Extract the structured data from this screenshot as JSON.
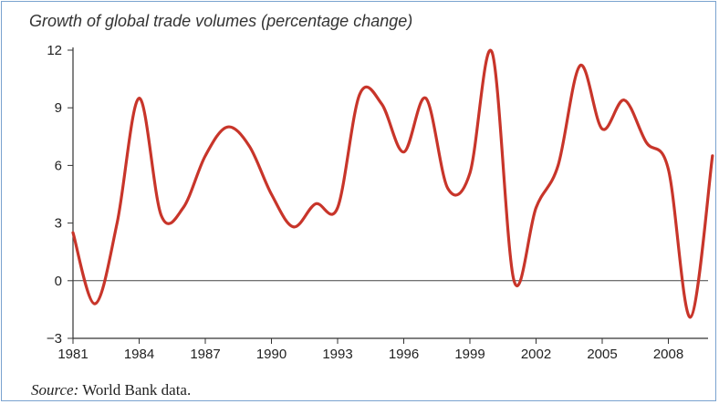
{
  "chart_data": {
    "type": "line",
    "title": "Growth of global trade volumes (percentage change)",
    "xlabel": "",
    "ylabel": "",
    "xlim": [
      1981,
      2009.8
    ],
    "ylim": [
      -3,
      12
    ],
    "xticks": [
      "1981",
      "1984",
      "1987",
      "1990",
      "1993",
      "1996",
      "1999",
      "2002",
      "2005",
      "2008"
    ],
    "yticks": [
      "12",
      "9",
      "6",
      "3",
      "0",
      "−3"
    ],
    "grid": false,
    "zero_line": true,
    "line_color": "#c8352a",
    "x": [
      1981,
      1982,
      1983,
      1984,
      1985,
      1986,
      1987,
      1988,
      1989,
      1990,
      1991,
      1992,
      1993,
      1994,
      1995,
      1996,
      1997,
      1998,
      1999,
      2000,
      2001,
      2002,
      2003,
      2004,
      2005,
      2006,
      2007,
      2008,
      2009,
      2010
    ],
    "series": [
      {
        "values": [
          2.5,
          -1.2,
          3.0,
          9.5,
          3.4,
          3.8,
          6.5,
          8.0,
          7.0,
          4.5,
          2.8,
          4.0,
          3.8,
          9.7,
          9.2,
          6.7,
          9.5,
          4.8,
          5.6,
          11.9,
          0.0,
          3.8,
          6.0,
          11.2,
          7.9,
          9.4,
          7.2,
          5.8,
          -1.9,
          6.5
        ]
      }
    ]
  },
  "source": {
    "prefix": "Source:",
    "text": " World Bank data."
  }
}
